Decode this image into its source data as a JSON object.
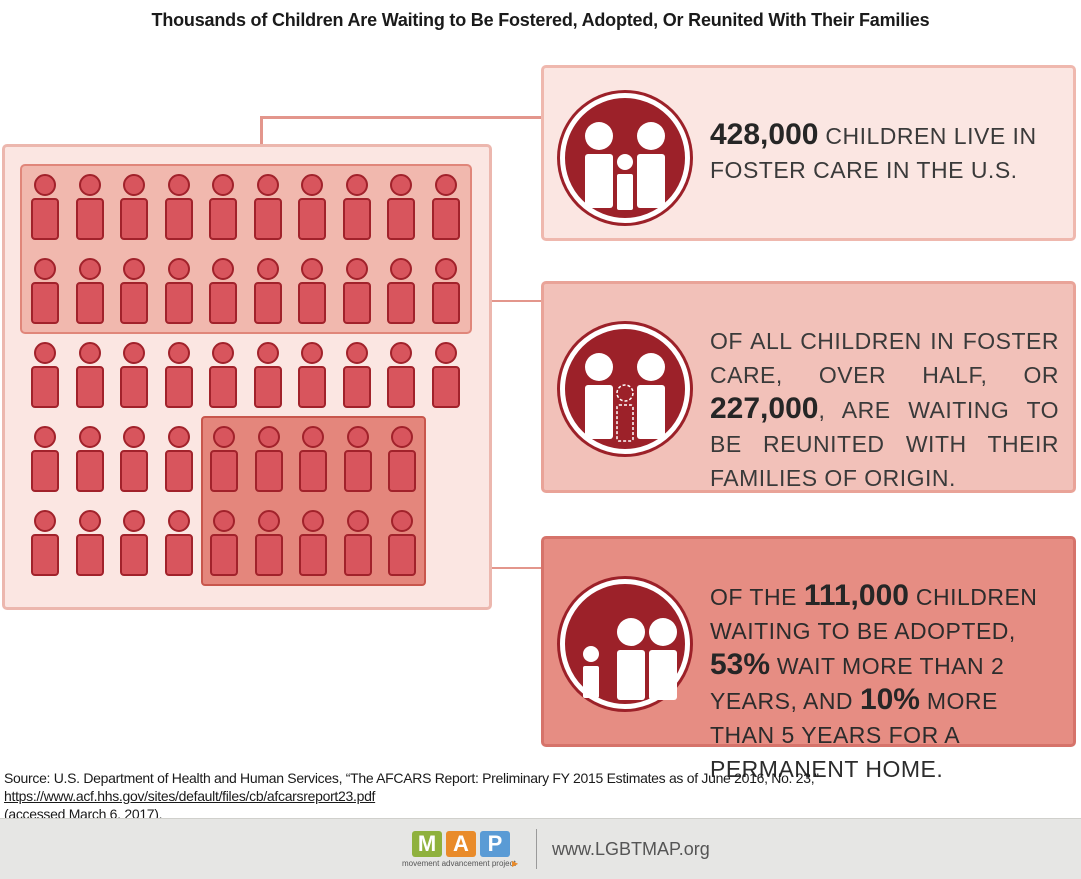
{
  "title": "Thousands of Children Are Waiting to Be Fostered, Adopted, Or Reunited With Their Families",
  "colors": {
    "dark_red": "#9c2129",
    "person_fill": "#d8555d",
    "person_stroke": "#a1222b",
    "panel1_bg": "#fbe6e2",
    "panel2_bg": "#f2c1b9",
    "panel3_bg": "#e68d83"
  },
  "people_grid": {
    "rows": 5,
    "cols": 10,
    "figures_shown": 48
  },
  "panels": [
    {
      "icon": "family-icon",
      "pre": "",
      "number": "428,000",
      "post": " children live in foster care in the U.S."
    },
    {
      "icon": "family-missing-child-icon",
      "pre": "Of all children in foster care, over half, or ",
      "number": "227,000",
      "post": ", are waiting to be reunited with their families of origin."
    },
    {
      "icon": "adoption-icon",
      "pre": "Of the ",
      "number": "111,000",
      "mid1": " children waiting to be adopted, ",
      "pct1": "53%",
      "mid2": " wait more than 2 years, and ",
      "pct2": "10%",
      "post": " more than 5 years for a permanent home."
    }
  ],
  "source": {
    "text": "Source: U.S. Department of Health and Human Services, “The AFCARS Report: Preliminary FY 2015 Estimates as of June 2016, No. 23,”",
    "link": "https://www.acf.hhs.gov/sites/default/files/cb/afcarsreport23.pdf",
    "accessed": "(accessed March 6, 2017)."
  },
  "footer": {
    "logo_letters": [
      "M",
      "A",
      "P"
    ],
    "logo_colors": [
      "#8fb13d",
      "#e98b2a",
      "#5a9bd5"
    ],
    "tagline": "movement advancement project",
    "url": "www.LGBTMAP.org"
  }
}
